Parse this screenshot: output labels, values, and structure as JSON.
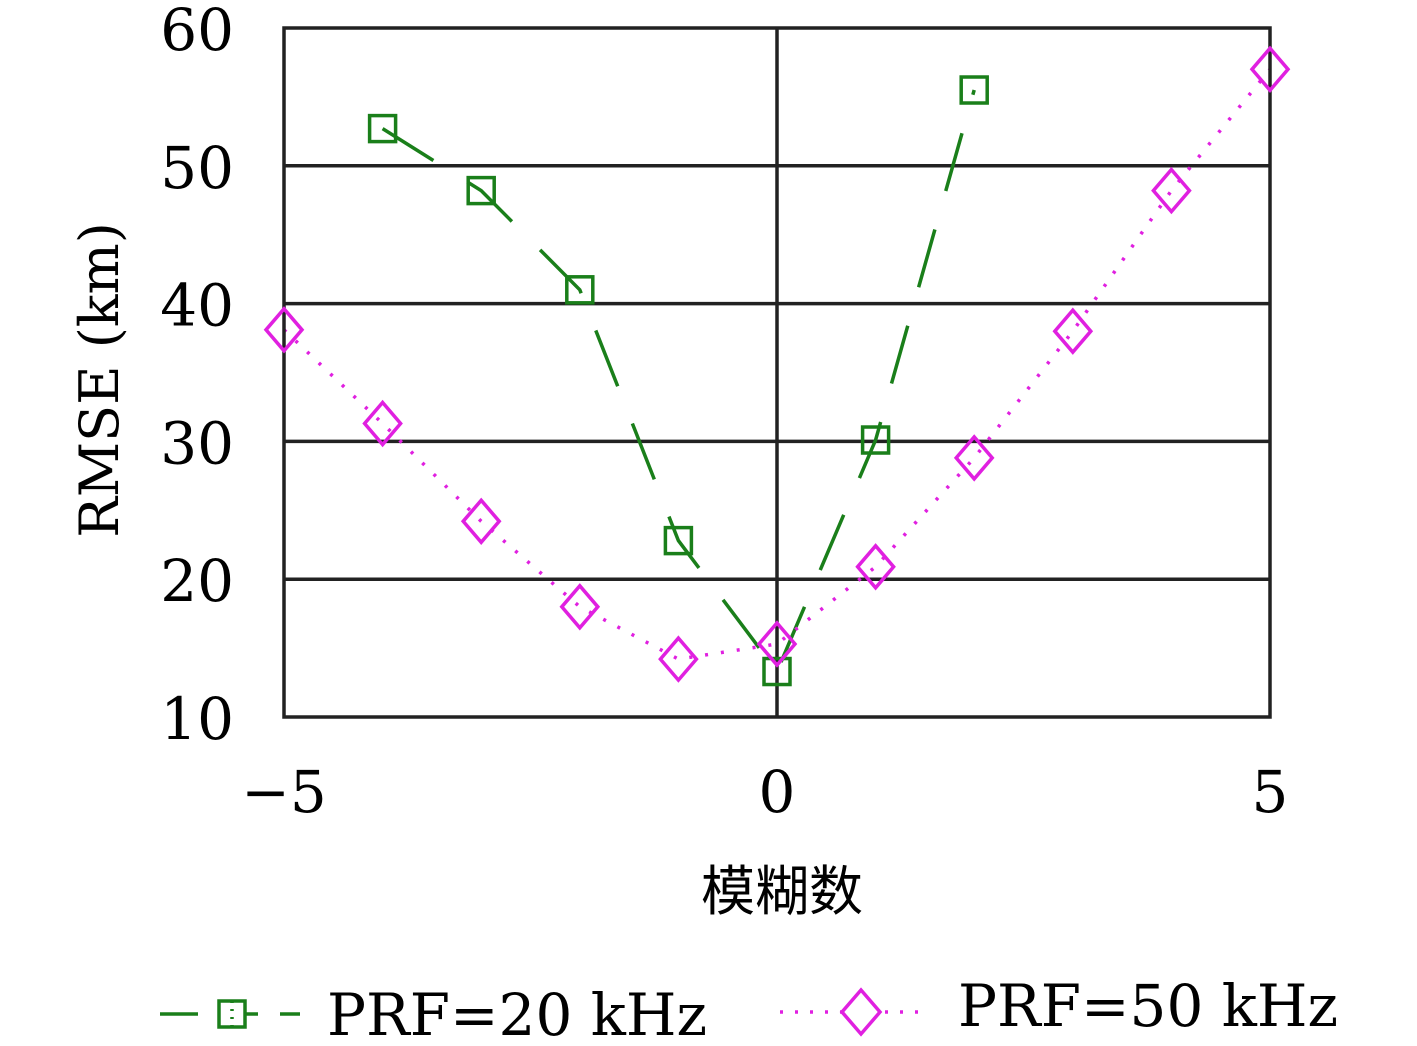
{
  "chart_data": {
    "type": "line",
    "title": "",
    "xlabel": "模糊数",
    "ylabel": "RMSE (km)",
    "xlim": [
      -5,
      5
    ],
    "ylim": [
      10,
      60
    ],
    "x_ticks": [
      "−5",
      "0",
      "5"
    ],
    "x_tick_values": [
      -5,
      0,
      5
    ],
    "y_ticks": [
      "10",
      "20",
      "30",
      "40",
      "50",
      "60"
    ],
    "y_tick_values": [
      10,
      20,
      30,
      40,
      50,
      60
    ],
    "grid": true,
    "legend_position": "bottom",
    "series": [
      {
        "name": "PRF=20 kHz",
        "color": "#1a7f1a",
        "line_style": "dashed",
        "marker": "square",
        "x": [
          -4,
          -3,
          -2,
          -1,
          0,
          1,
          2
        ],
        "y": [
          52.7,
          48.2,
          41.0,
          22.8,
          13.3,
          30.1,
          55.5
        ]
      },
      {
        "name": "PRF=50 kHz",
        "color": "#e020e0",
        "line_style": "dotted",
        "marker": "diamond",
        "x": [
          -5,
          -4,
          -3,
          -2,
          -1,
          0,
          1,
          2,
          3,
          4,
          5
        ],
        "y": [
          38.1,
          31.3,
          24.2,
          18.0,
          14.2,
          15.3,
          20.9,
          28.8,
          38.0,
          48.2,
          57.0
        ]
      }
    ]
  }
}
